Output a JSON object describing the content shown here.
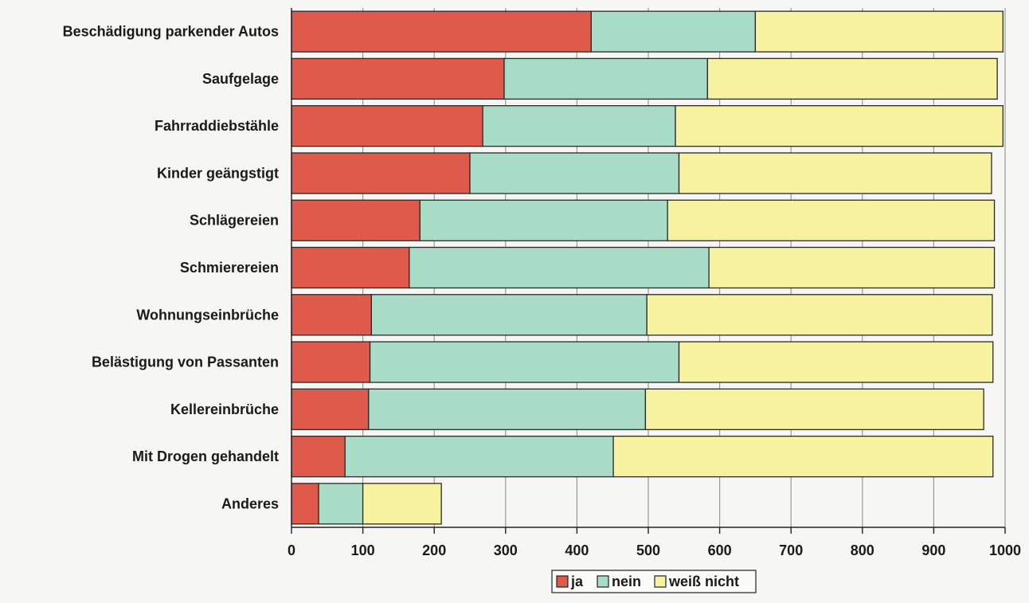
{
  "chart_data": {
    "type": "bar",
    "orientation": "horizontal",
    "stacked": true,
    "categories": [
      "Beschädigung parkender Autos",
      "Saufgelage",
      "Fahrraddiebstähle",
      "Kinder geängstigt",
      "Schlägereien",
      "Schmierereien",
      "Wohnungseinbrüche",
      "Belästigung von Passanten",
      "Kellereinbrüche",
      "Mit Drogen gehandelt",
      "Anderes"
    ],
    "series": [
      {
        "name": "ja",
        "color": "#e05a4c",
        "values": [
          420,
          298,
          268,
          250,
          180,
          165,
          112,
          110,
          108,
          75,
          38
        ]
      },
      {
        "name": "nein",
        "color": "#a9dcc7",
        "values": [
          230,
          285,
          270,
          293,
          347,
          420,
          386,
          433,
          388,
          376,
          62
        ]
      },
      {
        "name": "weiß nicht",
        "color": "#f6f2a0",
        "values": [
          347,
          406,
          459,
          438,
          458,
          400,
          484,
          440,
          474,
          532,
          110
        ]
      }
    ],
    "xlim": [
      0,
      1000
    ],
    "xticks": [
      0,
      100,
      200,
      300,
      400,
      500,
      600,
      700,
      800,
      900,
      1000
    ],
    "grid": true,
    "legend_position": "bottom-center",
    "title": "",
    "xlabel": "",
    "ylabel": ""
  }
}
